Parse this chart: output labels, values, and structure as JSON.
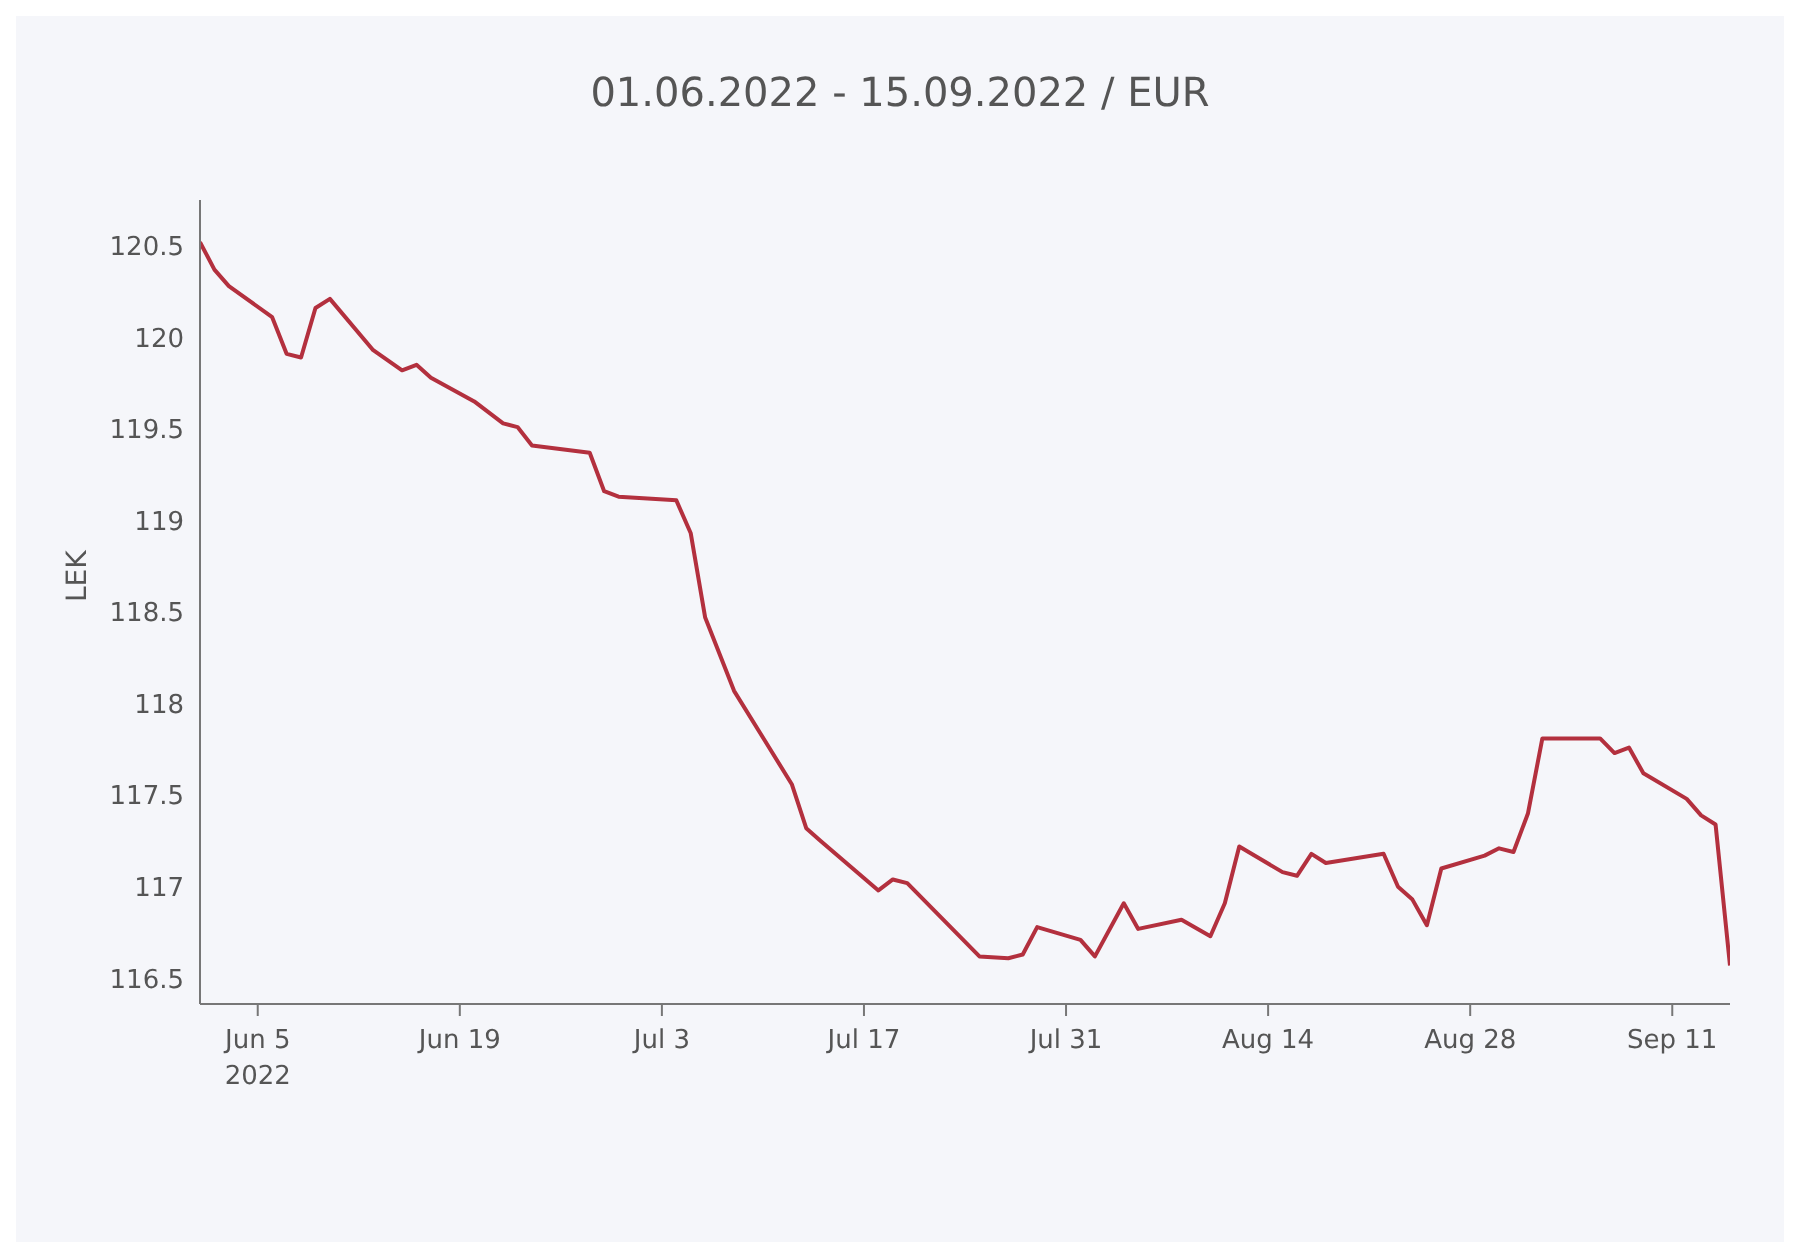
{
  "chart_data": {
    "type": "line",
    "title": "01.06.2022 - 15.09.2022 / EUR",
    "ylabel": "LEK",
    "x": [
      "2022-06-01",
      "2022-06-02",
      "2022-06-03",
      "2022-06-06",
      "2022-06-07",
      "2022-06-08",
      "2022-06-09",
      "2022-06-10",
      "2022-06-13",
      "2022-06-15",
      "2022-06-16",
      "2022-06-17",
      "2022-06-20",
      "2022-06-22",
      "2022-06-23",
      "2022-06-24",
      "2022-06-28",
      "2022-06-29",
      "2022-06-30",
      "2022-07-04",
      "2022-07-05",
      "2022-07-06",
      "2022-07-08",
      "2022-07-12",
      "2022-07-13",
      "2022-07-14",
      "2022-07-18",
      "2022-07-19",
      "2022-07-20",
      "2022-07-25",
      "2022-07-27",
      "2022-07-28",
      "2022-07-29",
      "2022-08-01",
      "2022-08-02",
      "2022-08-04",
      "2022-08-05",
      "2022-08-08",
      "2022-08-10",
      "2022-08-11",
      "2022-08-12",
      "2022-08-15",
      "2022-08-16",
      "2022-08-17",
      "2022-08-18",
      "2022-08-22",
      "2022-08-23",
      "2022-08-24",
      "2022-08-25",
      "2022-08-26",
      "2022-08-29",
      "2022-08-30",
      "2022-08-31",
      "2022-09-01",
      "2022-09-02",
      "2022-09-06",
      "2022-09-07",
      "2022-09-08",
      "2022-09-09",
      "2022-09-12",
      "2022-09-13",
      "2022-09-14",
      "2022-09-15"
    ],
    "series": [
      {
        "color": "#b3303e",
        "values": [
          120.52,
          120.37,
          120.28,
          120.11,
          119.91,
          119.89,
          120.16,
          120.21,
          119.93,
          119.82,
          119.85,
          119.78,
          119.65,
          119.53,
          119.51,
          119.41,
          119.37,
          119.16,
          119.13,
          119.11,
          118.93,
          118.47,
          118.07,
          117.56,
          117.32,
          117.25,
          116.98,
          117.04,
          117.02,
          116.62,
          116.61,
          116.63,
          116.78,
          116.71,
          116.62,
          116.91,
          116.77,
          116.82,
          116.73,
          116.91,
          117.22,
          117.08,
          117.06,
          117.18,
          117.13,
          117.18,
          117.0,
          116.93,
          116.79,
          117.1,
          117.17,
          117.21,
          117.19,
          117.4,
          117.81,
          117.81,
          117.73,
          117.76,
          117.62,
          117.48,
          117.39,
          117.34,
          116.57
        ]
      }
    ],
    "xlim": [
      "2022-06-01",
      "2022-09-15"
    ],
    "xticks": [
      {
        "value": "2022-06-05",
        "label": "Jun 5\n2022"
      },
      {
        "value": "2022-06-19",
        "label": "Jun 19"
      },
      {
        "value": "2022-07-03",
        "label": "Jul 3"
      },
      {
        "value": "2022-07-17",
        "label": "Jul 17"
      },
      {
        "value": "2022-07-31",
        "label": "Jul 31"
      },
      {
        "value": "2022-08-14",
        "label": "Aug 14"
      },
      {
        "value": "2022-08-28",
        "label": "Aug 28"
      },
      {
        "value": "2022-09-11",
        "label": "Sep 11"
      }
    ],
    "ylim": [
      116.36,
      120.75
    ],
    "yticks": [
      116.5,
      117,
      117.5,
      118,
      118.5,
      119,
      119.5,
      120,
      120.5
    ],
    "grid": false,
    "legend": false,
    "marker": "none",
    "line_style": "solid"
  }
}
